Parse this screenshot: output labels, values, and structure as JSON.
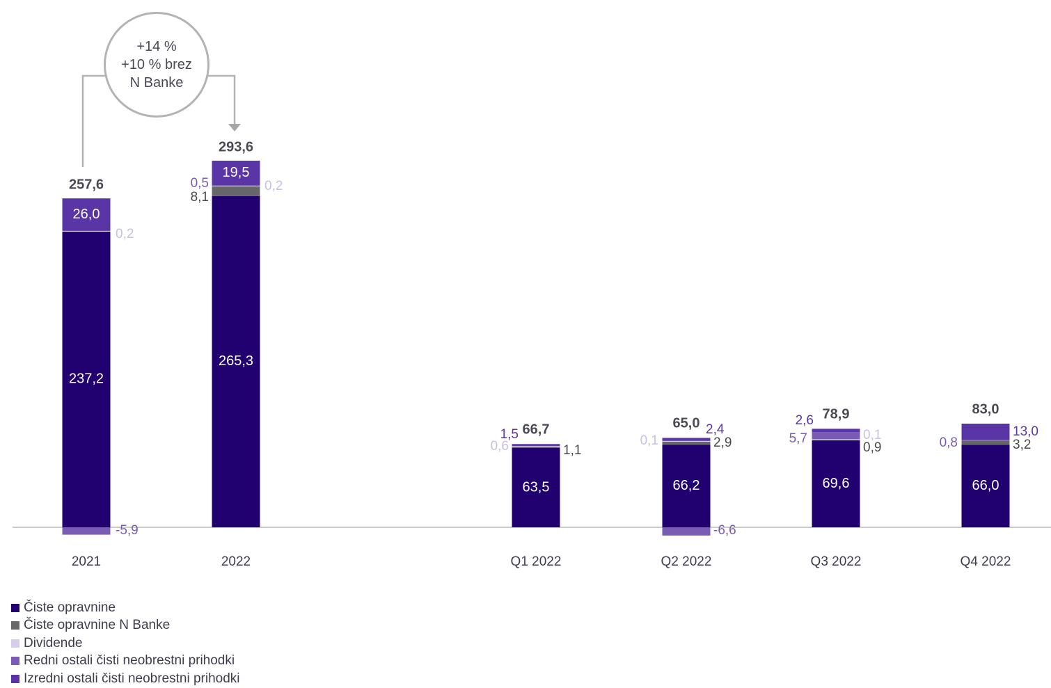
{
  "chart_data": {
    "type": "bar",
    "stacked": true,
    "categories": [
      "2021",
      "2022",
      "Q1 2022",
      "Q2 2022",
      "Q3 2022",
      "Q4 2022"
    ],
    "totals": [
      "257,6",
      "293,6",
      "66,7",
      "65,0",
      "78,9",
      "83,0"
    ],
    "series": [
      {
        "name": "Čiste opravnine",
        "color": "#210070",
        "values": [
          237.2,
          265.3,
          63.5,
          66.2,
          69.6,
          66.0
        ],
        "labels": [
          "237,2",
          "265,3",
          "63,5",
          "66,2",
          "69,6",
          "66,0"
        ]
      },
      {
        "name": "Čiste opravnine N Banke",
        "color": "#666769",
        "values": [
          0,
          8.1,
          1.1,
          2.9,
          0.9,
          3.2
        ],
        "labels": [
          "",
          "8,1",
          "1,1",
          "2,9",
          "0,9",
          "3,2"
        ]
      },
      {
        "name": "Dividende",
        "color": "#d6cde8",
        "values": [
          0.2,
          0.2,
          0.6,
          0.1,
          0.1,
          0
        ],
        "labels": [
          "0,2",
          "0,2",
          "0,6",
          "0,1",
          "0,1",
          ""
        ]
      },
      {
        "name": "Redni ostali čisti neobrestni prihodki",
        "color": "#7a5cb5",
        "values": [
          -5.9,
          0.5,
          0,
          -6.6,
          5.7,
          0.8
        ],
        "labels": [
          "-5,9",
          "0,5",
          "",
          "-6,6",
          "5,7",
          "0,8"
        ]
      },
      {
        "name": "Izredni ostali čisti neobrestni prihodki",
        "color": "#5a35a5",
        "values": [
          26.0,
          19.5,
          1.5,
          2.4,
          2.6,
          13.0
        ],
        "labels": [
          "26,0",
          "19,5",
          "1,5",
          "2,4",
          "2,6",
          "13,0"
        ]
      }
    ]
  },
  "callout": {
    "line1": "+14 %",
    "line2": "+10 % brez",
    "line3": "N Banke"
  },
  "legend": [
    {
      "label": "Čiste opravnine",
      "color": "#210070"
    },
    {
      "label": "Čiste opravnine N Banke",
      "color": "#666769"
    },
    {
      "label": "Dividende",
      "color": "#d6cde8"
    },
    {
      "label": "Redni ostali čisti neobrestni prihodki",
      "color": "#7a5cb5"
    },
    {
      "label": "Izredni ostali čisti neobrestni prihodki",
      "color": "#5a35a5"
    }
  ]
}
